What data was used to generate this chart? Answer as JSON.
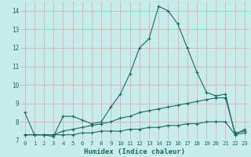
{
  "xlabel": "Humidex (Indice chaleur)",
  "bg_color": "#c8ecea",
  "grid_color": "#d4b8b8",
  "line_color": "#1a6b62",
  "x_values": [
    0,
    1,
    2,
    3,
    4,
    5,
    6,
    7,
    8,
    9,
    10,
    11,
    12,
    13,
    14,
    15,
    16,
    17,
    18,
    19,
    20,
    21,
    22,
    23
  ],
  "line1": [
    8.5,
    7.3,
    7.3,
    7.2,
    8.3,
    8.3,
    8.1,
    7.9,
    8.0,
    8.8,
    9.5,
    10.6,
    12.0,
    12.5,
    14.25,
    14.0,
    13.3,
    12.0,
    10.7,
    9.6,
    9.4,
    9.5,
    7.3,
    7.6
  ],
  "line2": [
    7.3,
    7.3,
    7.3,
    7.3,
    7.5,
    7.6,
    7.7,
    7.8,
    7.9,
    8.0,
    8.2,
    8.3,
    8.5,
    8.6,
    8.7,
    8.8,
    8.9,
    9.0,
    9.1,
    9.2,
    9.3,
    9.3,
    7.4,
    7.5
  ],
  "line3": [
    7.3,
    7.3,
    7.3,
    7.3,
    7.3,
    7.3,
    7.4,
    7.4,
    7.5,
    7.5,
    7.5,
    7.6,
    7.6,
    7.7,
    7.7,
    7.8,
    7.8,
    7.9,
    7.9,
    8.0,
    8.0,
    8.0,
    7.3,
    7.4
  ],
  "ylim": [
    7.0,
    14.5
  ],
  "yticks": [
    7,
    8,
    9,
    10,
    11,
    12,
    13,
    14
  ],
  "xlim": [
    -0.5,
    23.5
  ],
  "xticks": [
    0,
    1,
    2,
    3,
    4,
    5,
    6,
    7,
    8,
    9,
    10,
    11,
    12,
    13,
    14,
    15,
    16,
    17,
    18,
    19,
    20,
    21,
    22,
    23
  ]
}
